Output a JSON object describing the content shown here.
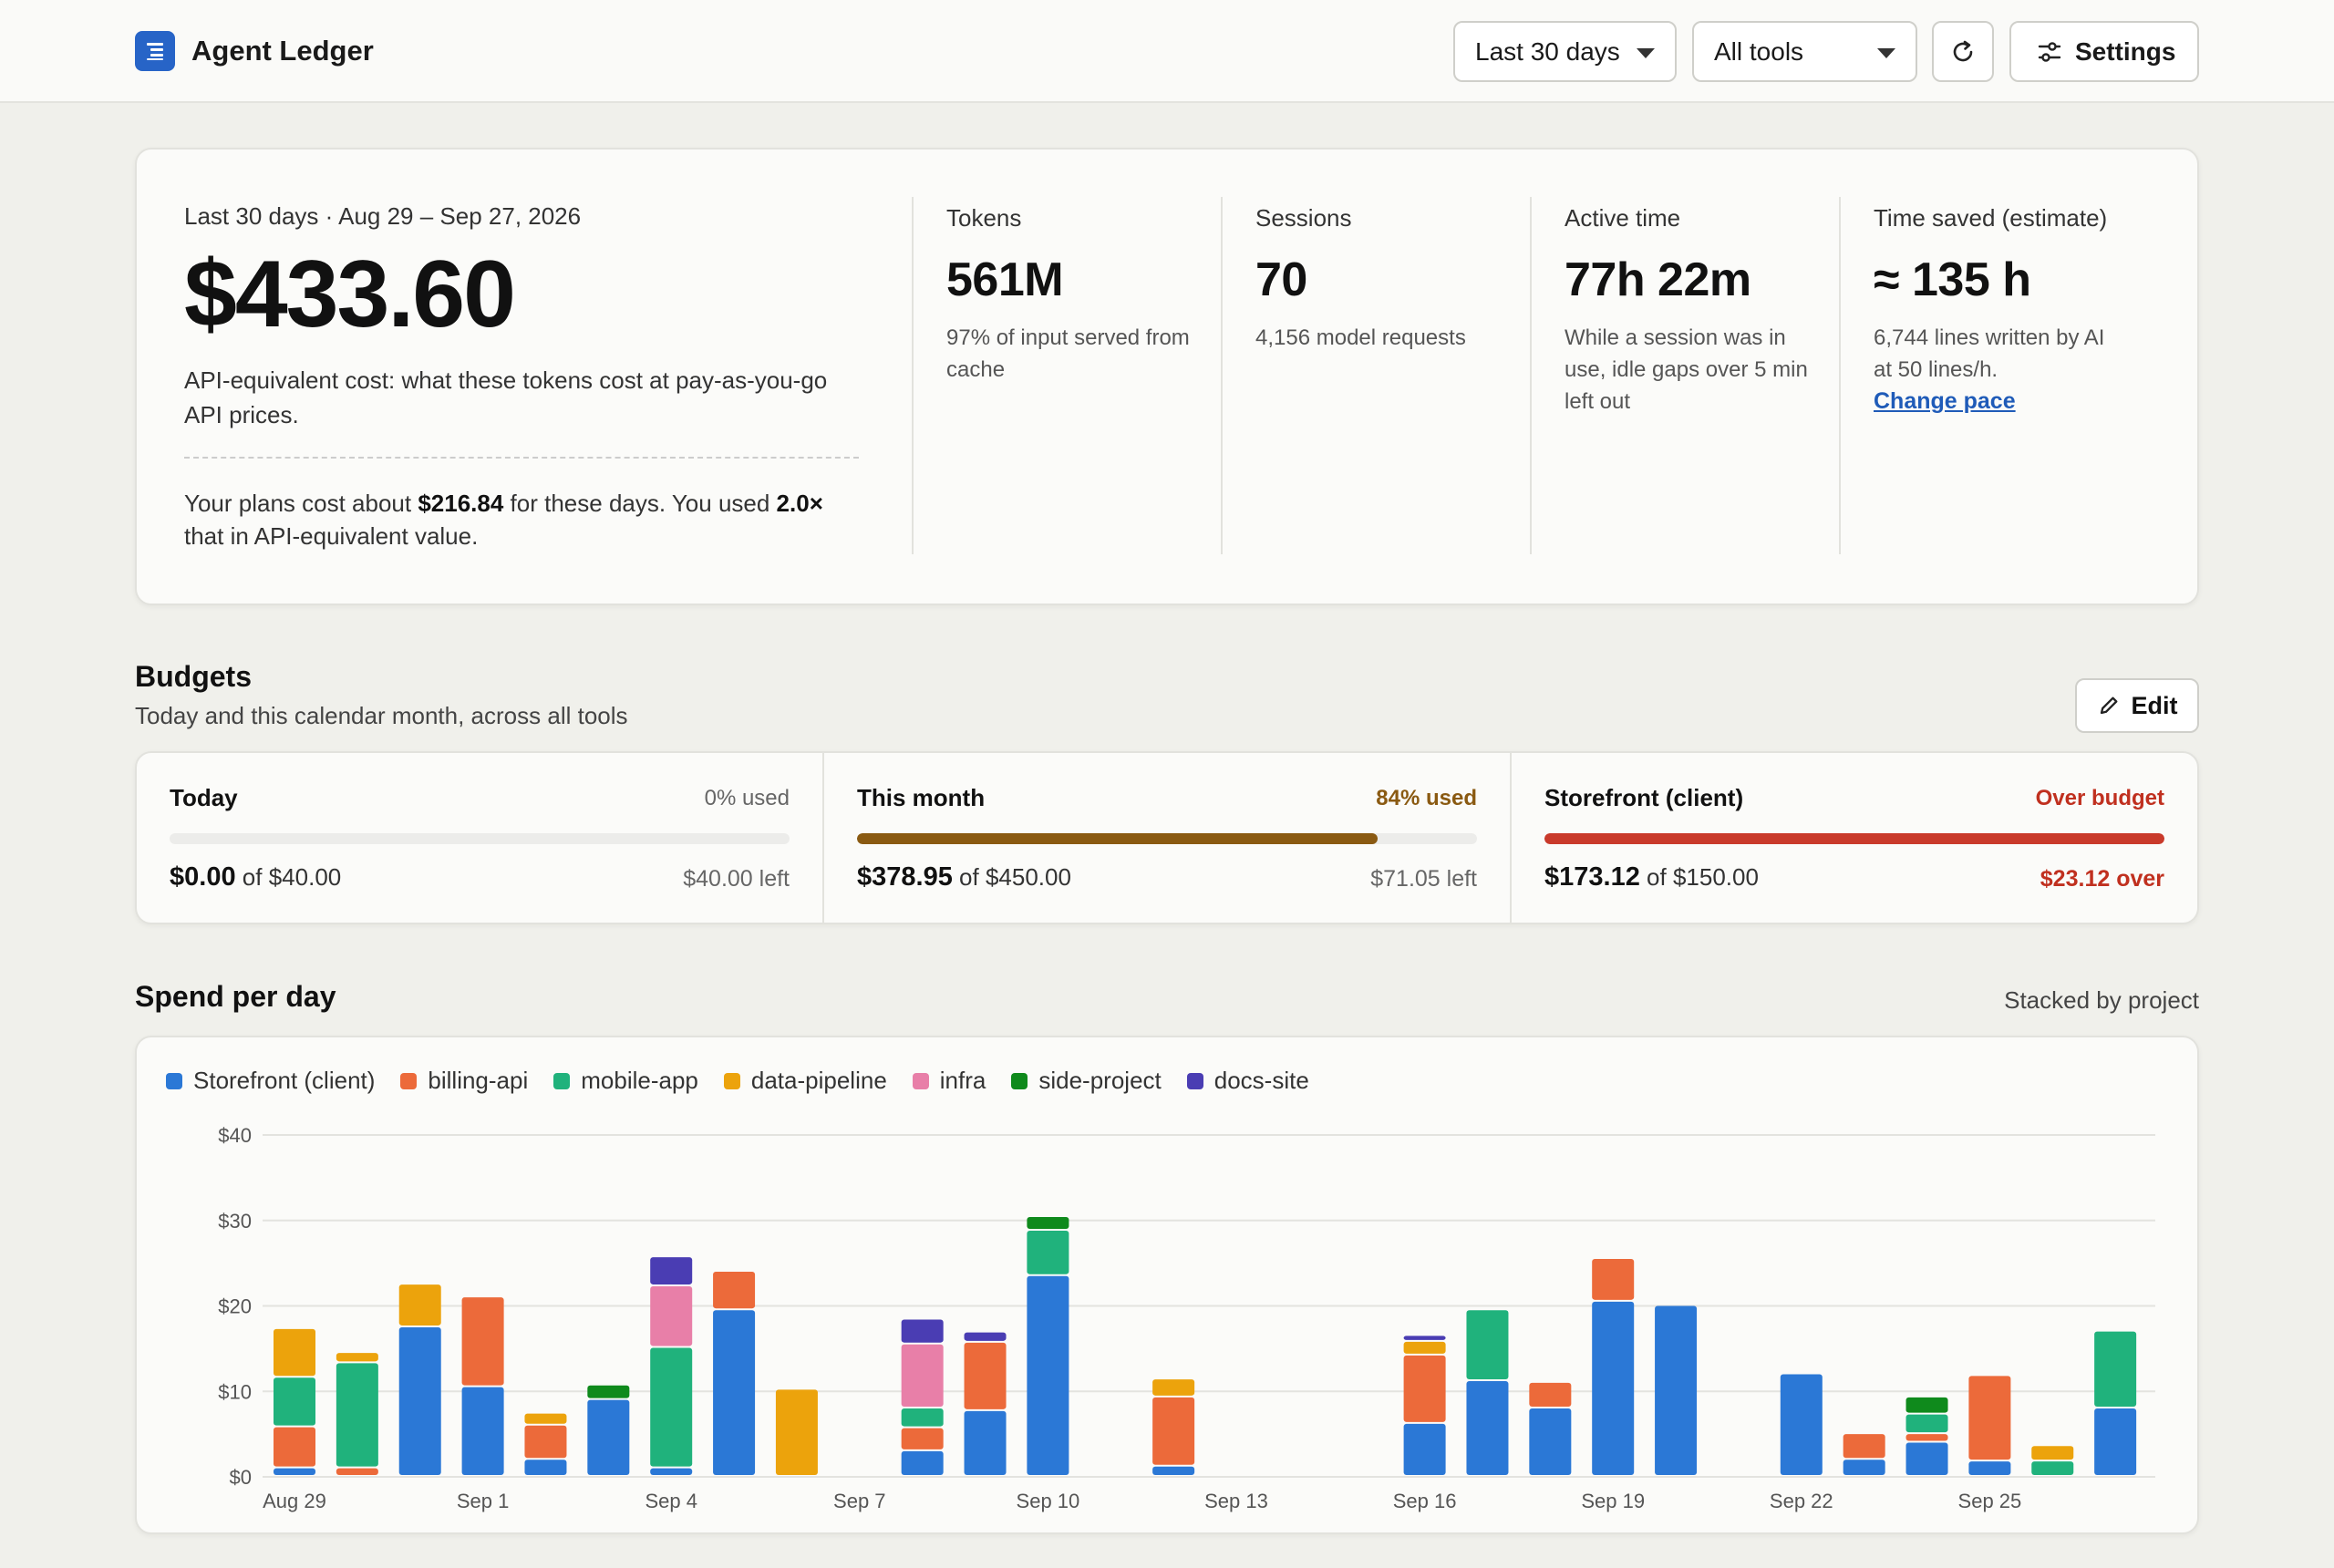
{
  "header": {
    "title": "Agent Ledger",
    "range_select": "Last 30 days",
    "tool_select": "All tools",
    "settings_label": "Settings"
  },
  "summary": {
    "period": "Last 30 days · Aug 29 – Sep 27, 2026",
    "total_cost": "$433.60",
    "cost_desc": "API-equivalent cost: what these tokens cost at pay-as-you-go API prices.",
    "plan_prefix": "Your plans cost about ",
    "plan_cost": "$216.84",
    "plan_mid": " for these days. You used ",
    "plan_ratio": "2.0×",
    "plan_suffix": " that in API-equivalent value.",
    "stats": [
      {
        "label": "Tokens",
        "value": "561M",
        "sub": "97% of input served from cache"
      },
      {
        "label": "Sessions",
        "value": "70",
        "sub": "4,156 model requests"
      },
      {
        "label": "Active time",
        "value": "77h 22m",
        "sub": "While a session was in use, idle gaps over 5 min left out"
      },
      {
        "label": "Time saved (estimate)",
        "value": "≈ 135 h",
        "sub": "6,744 lines written by AI at 50 lines/h.",
        "link": "Change pace"
      }
    ]
  },
  "budgets": {
    "title": "Budgets",
    "subtitle": "Today and this calendar month, across all tools",
    "edit_label": "Edit",
    "items": [
      {
        "name": "Today",
        "status": "0% used",
        "spent": "$0.00",
        "of": " of $40.00",
        "remain": "$40.00 left",
        "fraction": 0.0,
        "color": "#c9c9c5",
        "status_color": "#666666",
        "remain_color": "#666666"
      },
      {
        "name": "This month",
        "status": "84% used",
        "spent": "$378.95",
        "of": " of $450.00",
        "remain": "$71.05 left",
        "fraction": 0.84,
        "color": "#8a5a12",
        "status_color": "#8a5a12",
        "remain_color": "#666666"
      },
      {
        "name": "Storefront (client)",
        "status": "Over budget",
        "spent": "$173.12",
        "of": " of $150.00",
        "remain": "$23.12 over",
        "fraction": 1.0,
        "color": "#c93a2b",
        "status_color": "#c0301f",
        "remain_color": "#c0301f"
      }
    ]
  },
  "spend": {
    "title": "Spend per day",
    "note": "Stacked by project"
  },
  "chart_data": {
    "type": "bar",
    "stacked": true,
    "legend_position": "top-left",
    "grid": true,
    "ylim": [
      0,
      40
    ],
    "yticks": [
      "$0",
      "$10",
      "$20",
      "$30",
      "$40"
    ],
    "ytick_values": [
      0,
      10,
      20,
      30,
      40
    ],
    "xtick_labels": [
      "Aug 29",
      "Sep 1",
      "Sep 4",
      "Sep 7",
      "Sep 10",
      "Sep 13",
      "Sep 16",
      "Sep 19",
      "Sep 22",
      "Sep 25"
    ],
    "xtick_index": [
      0,
      3,
      6,
      9,
      12,
      15,
      18,
      21,
      24,
      27
    ],
    "categories": [
      "Aug 29",
      "Aug 30",
      "Aug 31",
      "Sep 1",
      "Sep 2",
      "Sep 3",
      "Sep 4",
      "Sep 5",
      "Sep 6",
      "Sep 7",
      "Sep 8",
      "Sep 9",
      "Sep 10",
      "Sep 11",
      "Sep 12",
      "Sep 13",
      "Sep 14",
      "Sep 15",
      "Sep 16",
      "Sep 17",
      "Sep 18",
      "Sep 19",
      "Sep 20",
      "Sep 21",
      "Sep 22",
      "Sep 23",
      "Sep 24",
      "Sep 25",
      "Sep 26",
      "Sep 27"
    ],
    "series": [
      {
        "name": "Storefront (client)",
        "color": "#2b78d6",
        "values": [
          1.0,
          0,
          17.5,
          10.5,
          2.0,
          9.0,
          1.0,
          19.5,
          0,
          0,
          3.0,
          7.7,
          23.5,
          0,
          1.2,
          0,
          0,
          0,
          6.2,
          11.2,
          8.0,
          20.5,
          20.0,
          0,
          12.0,
          2.0,
          4.0,
          1.8,
          0,
          8.0
        ]
      },
      {
        "name": "billing-api",
        "color": "#ec6a3a",
        "values": [
          4.8,
          1.0,
          0,
          10.5,
          4.0,
          0,
          0,
          4.5,
          0,
          0,
          2.7,
          8.0,
          0,
          0,
          8.1,
          0,
          0,
          0,
          8.0,
          0,
          3.0,
          5.0,
          0,
          0,
          0,
          3.0,
          1.0,
          10.0,
          0,
          0
        ]
      },
      {
        "name": "mobile-app",
        "color": "#20b27c",
        "values": [
          5.8,
          12.3,
          0,
          0,
          0,
          0,
          14.1,
          0,
          0,
          0,
          2.3,
          0,
          5.3,
          0,
          0,
          0,
          0,
          0,
          0,
          8.3,
          0,
          0,
          0,
          0,
          0,
          0,
          2.3,
          0,
          1.8,
          9.0
        ]
      },
      {
        "name": "data-pipeline",
        "color": "#eca30c",
        "values": [
          5.7,
          1.2,
          5.0,
          0,
          1.4,
          0,
          0,
          0,
          10.2,
          0,
          0,
          0,
          0,
          0,
          2.1,
          0,
          0,
          0,
          1.6,
          0,
          0,
          0,
          0,
          0,
          0,
          0,
          0,
          0,
          1.8,
          0
        ]
      },
      {
        "name": "infra",
        "color": "#e87fa8",
        "values": [
          0,
          0,
          0,
          0,
          0,
          0,
          7.2,
          0,
          0,
          0,
          7.5,
          0,
          0,
          0,
          0,
          0,
          0,
          0,
          0,
          0,
          0,
          0,
          0,
          0,
          0,
          0,
          0,
          0,
          0,
          0
        ]
      },
      {
        "name": "side-project",
        "color": "#0f8a1c",
        "values": [
          0,
          0,
          0,
          0,
          0,
          1.7,
          0,
          0,
          0,
          0,
          0,
          0,
          1.6,
          0,
          0,
          0,
          0,
          0,
          0,
          0,
          0,
          0,
          0,
          0,
          0,
          0,
          2.0,
          0,
          0,
          0
        ]
      },
      {
        "name": "docs-site",
        "color": "#4a3db3",
        "values": [
          0,
          0,
          0,
          0,
          0,
          0,
          3.4,
          0,
          0,
          0,
          2.9,
          1.2,
          0,
          0,
          0,
          0,
          0,
          0,
          0.7,
          0,
          0,
          0,
          0,
          0,
          0,
          0,
          0,
          0,
          0,
          0
        ]
      }
    ]
  }
}
